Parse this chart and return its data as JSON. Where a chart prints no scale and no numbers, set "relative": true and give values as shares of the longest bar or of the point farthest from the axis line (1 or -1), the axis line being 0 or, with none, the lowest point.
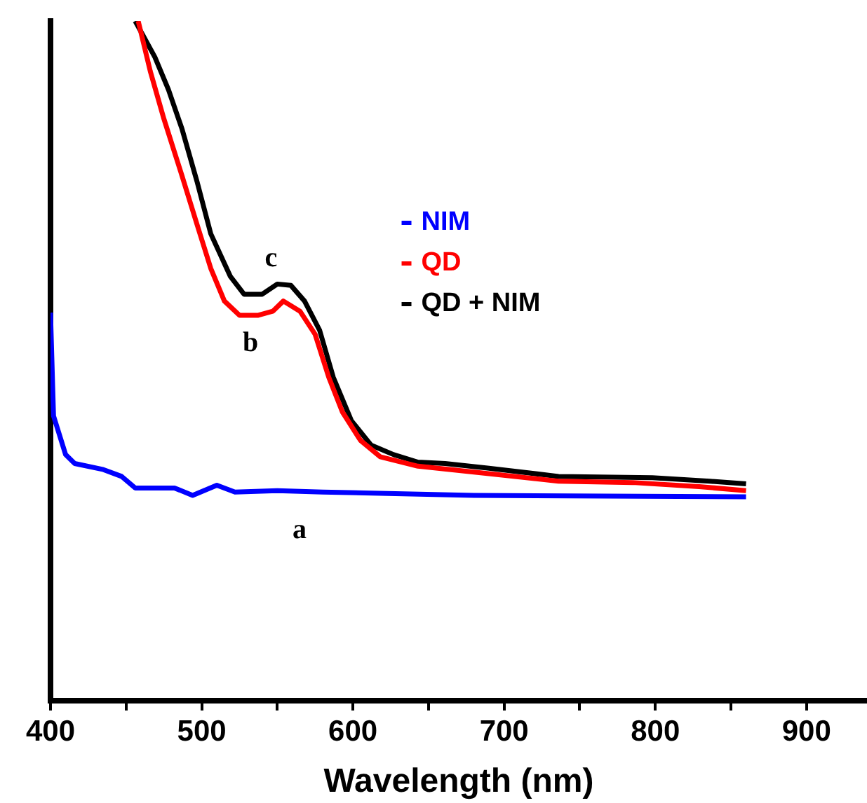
{
  "chart_data": {
    "type": "line",
    "xlabel": "Wavelength (nm)",
    "relative": true,
    "xlim": [
      400,
      940
    ],
    "xticks": [
      400,
      {
        "value": 450,
        "label": null
      },
      500,
      {
        "value": 550,
        "label": null
      },
      600,
      {
        "value": 650,
        "label": null
      },
      700,
      {
        "value": 750,
        "label": null
      },
      800,
      {
        "value": 850,
        "label": null
      },
      900
    ],
    "grid": false,
    "legend": "right",
    "marker": "none",
    "line_style": "solid",
    "annotations": [
      "a",
      "b",
      "c"
    ],
    "series": [
      {
        "name": "NIM",
        "color": "#0000ff",
        "x": [
          400,
          402,
          410,
          416,
          435,
          447,
          456,
          482,
          494,
          510,
          522,
          550,
          580,
          680,
          860
        ],
        "values": [
          0.571,
          0.419,
          0.362,
          0.349,
          0.34,
          0.33,
          0.313,
          0.313,
          0.302,
          0.317,
          0.307,
          0.309,
          0.307,
          0.302,
          0.3
        ]
      },
      {
        "name": "QD",
        "color": "#ff0000",
        "x": [
          458,
          466,
          475,
          487,
          497,
          506,
          515,
          525,
          537,
          547,
          554,
          565,
          575,
          584,
          593,
          605,
          618,
          643,
          690,
          736,
          785,
          829,
          860
        ],
        "values": [
          1,
          0.926,
          0.856,
          0.772,
          0.7,
          0.636,
          0.588,
          0.567,
          0.567,
          0.573,
          0.588,
          0.573,
          0.539,
          0.476,
          0.425,
          0.383,
          0.359,
          0.345,
          0.334,
          0.323,
          0.321,
          0.315,
          0.309
        ]
      },
      {
        "name": "QD + NIM",
        "color": "#000000",
        "x": [
          456,
          469,
          478,
          487,
          497,
          506,
          519,
          528,
          540,
          550,
          559,
          568,
          578,
          587,
          599,
          612,
          627,
          643,
          661,
          690,
          736,
          798,
          836,
          860
        ],
        "values": [
          1,
          0.947,
          0.899,
          0.841,
          0.763,
          0.687,
          0.624,
          0.598,
          0.598,
          0.613,
          0.611,
          0.588,
          0.545,
          0.476,
          0.412,
          0.376,
          0.362,
          0.351,
          0.349,
          0.342,
          0.33,
          0.328,
          0.323,
          0.319
        ]
      }
    ]
  }
}
